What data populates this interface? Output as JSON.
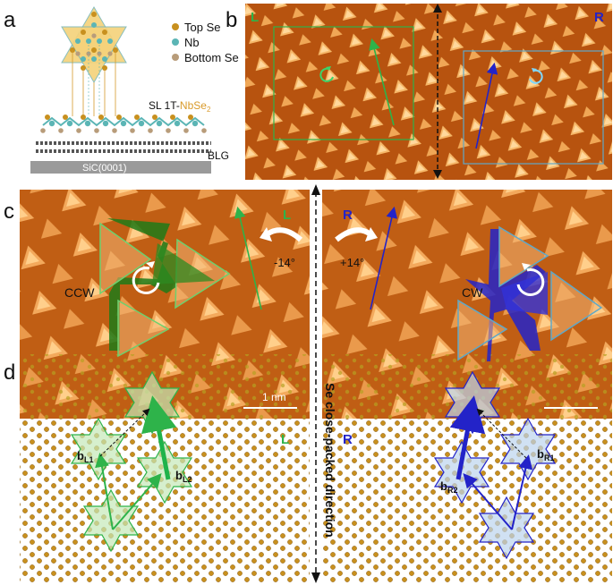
{
  "figure": {
    "panel_a": {
      "letter": "a",
      "legend": [
        "Top Se",
        "Nb",
        "Bottom Se"
      ],
      "title_prefix": "SL 1T-",
      "title_nb": "NbSe",
      "title_sub": "2",
      "bilayer": "BLG",
      "substrate": "SiC(0001)"
    },
    "panel_b": {
      "letter": "b",
      "left": "L",
      "right": "R"
    },
    "panel_c": {
      "letter": "c",
      "left": "L",
      "right": "R",
      "angle_left": "-14°",
      "angle_right": "+14°",
      "ccw": "CCW",
      "cw": "CW",
      "scale": "1 nm"
    },
    "panel_d": {
      "letter": "d",
      "left": "L",
      "right": "R",
      "bL1_main": "b",
      "bL1_sub": "L1",
      "bL2_main": "b",
      "bL2_sub": "L2",
      "bR1_main": "b",
      "bR1_sub": "R1",
      "bR2_main": "b",
      "bR2_sub": "R2"
    },
    "divider_text": "Se close-packed direction",
    "colors": {
      "green": "#2eb34a",
      "dark_green": "#1f7a1f",
      "blue": "#2323c8",
      "se_gold": "#c8901e",
      "nb_teal": "#5bb5b5",
      "stm_dark": "#a3440c",
      "stm_light": "#ffd191"
    }
  }
}
